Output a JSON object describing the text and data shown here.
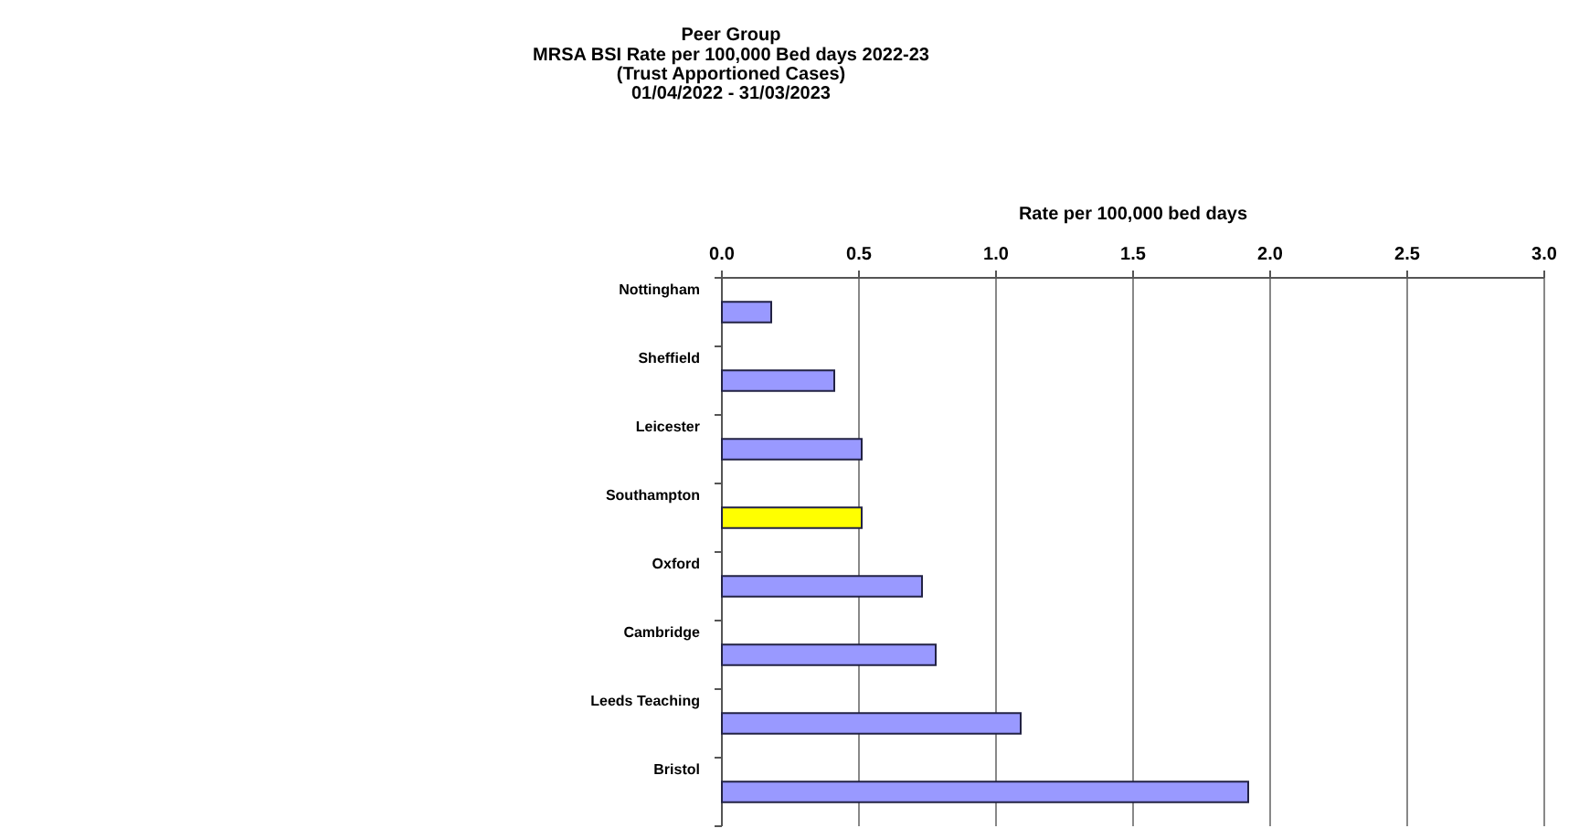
{
  "chart_data": {
    "type": "bar",
    "orientation": "horizontal",
    "title": "Peer Group",
    "subtitle": "MRSA BSI Rate per 100,000 Bed days 2022-23\n(Trust Apportioned Cases)\n01/04/2022 - 31/03/2023",
    "xlabel": "Rate per 100,000 bed days",
    "categories": [
      "Nottingham",
      "Sheffield",
      "Leicester",
      "Southampton",
      "Oxford",
      "Cambridge",
      "Leeds Teaching",
      "Bristol"
    ],
    "values": [
      0.18,
      0.41,
      0.51,
      0.51,
      0.73,
      0.78,
      1.09,
      1.92
    ],
    "colors": [
      "#9999ff",
      "#9999ff",
      "#9999ff",
      "#ffff00",
      "#9999ff",
      "#9999ff",
      "#9999ff",
      "#9999ff"
    ],
    "xlim": [
      0,
      3
    ],
    "xticks": [
      {
        "value": 0,
        "label": "0.0"
      },
      {
        "value": 0.5,
        "label": "0.5"
      },
      {
        "value": 1,
        "label": "1.0"
      },
      {
        "value": 1.5,
        "label": "1.5"
      },
      {
        "value": 2,
        "label": "2.0"
      },
      {
        "value": 2.5,
        "label": "2.5"
      },
      {
        "value": 3,
        "label": "3.0"
      }
    ],
    "grid": "x"
  }
}
